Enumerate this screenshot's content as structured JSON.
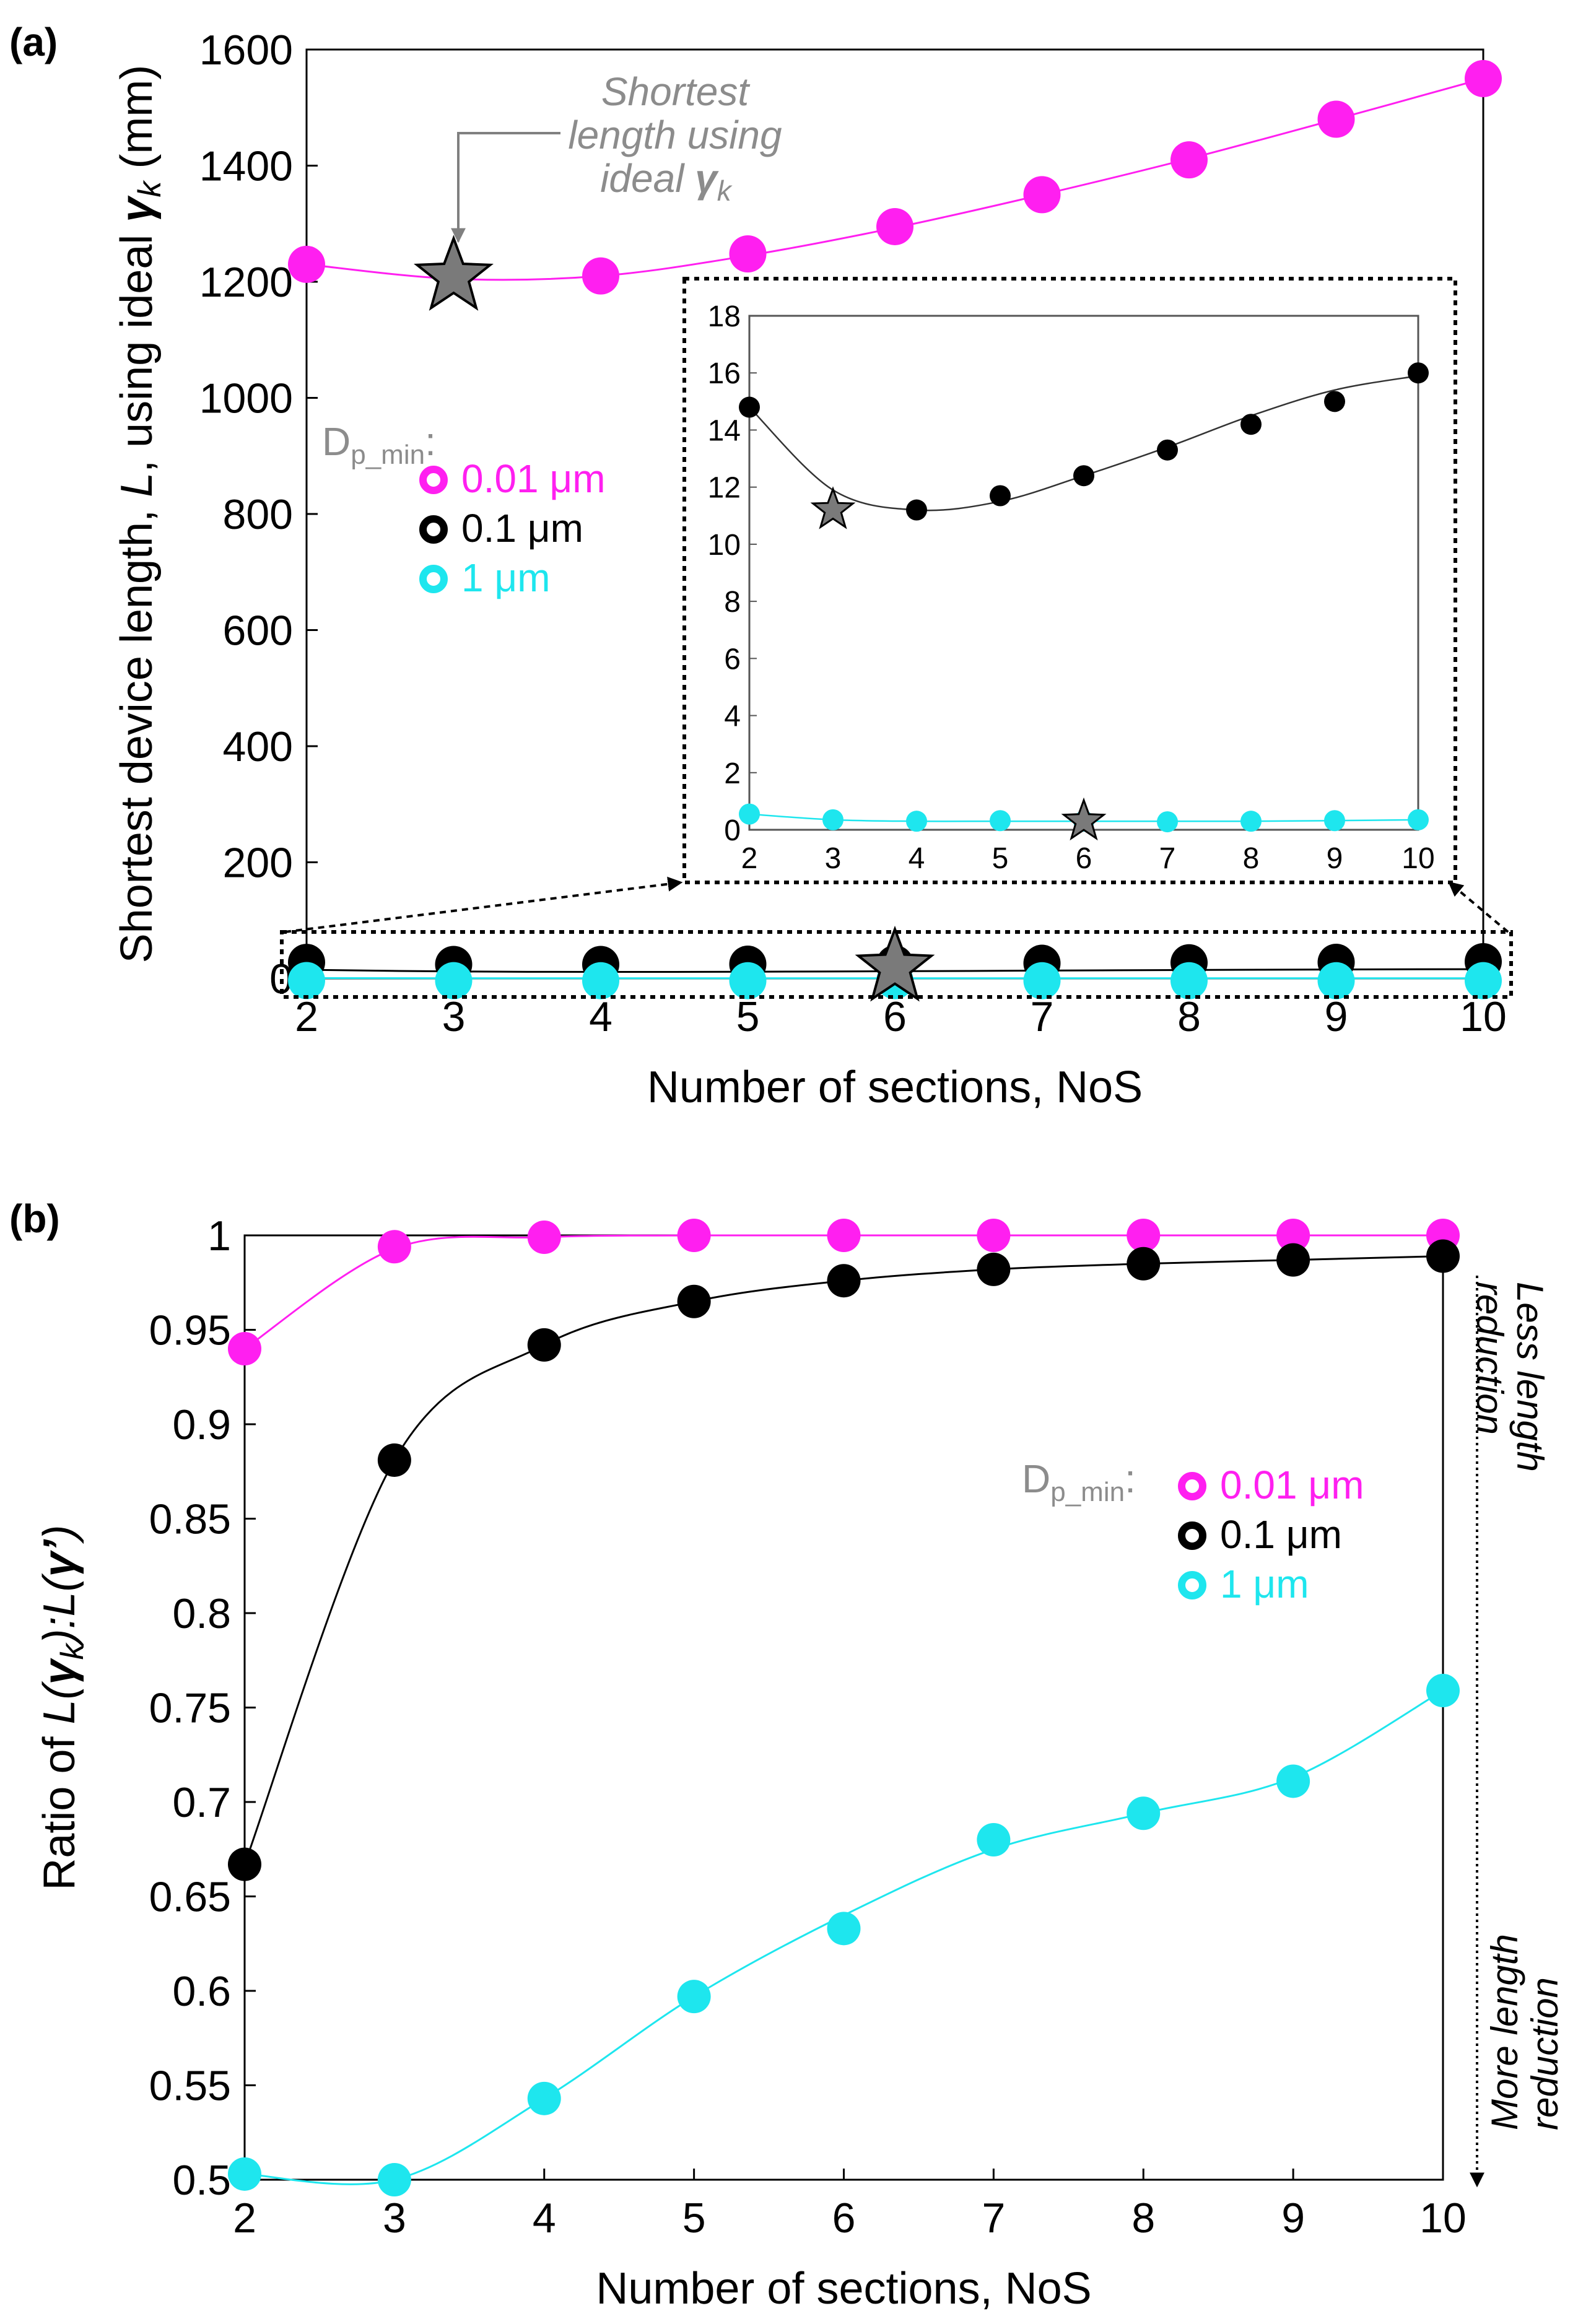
{
  "colors": {
    "magenta": "#ff1ff0",
    "black": "#000000",
    "cyan": "#1ee6ee",
    "gray": "#808080",
    "star_fill": "#7a7a7a",
    "gray_text": "#8c8c8c"
  },
  "legend": {
    "title_main": "D",
    "title_sub": "p_min",
    "title_colon": ":",
    "items": [
      "0.01 μm",
      "0.1 μm",
      "1 μm"
    ]
  },
  "chart_data": [
    {
      "panel": "(a)",
      "type": "line",
      "xlabel": "Number of sections, NoS",
      "ylabel_parts": [
        "Shortest device length, ",
        "L",
        ", using ideal ",
        "γ",
        "k",
        " (mm)"
      ],
      "x": [
        2,
        3,
        4,
        5,
        6,
        7,
        8,
        9,
        10
      ],
      "xlim": [
        2,
        10
      ],
      "ylim": [
        0,
        1600
      ],
      "yticks": [
        0,
        200,
        400,
        600,
        800,
        1000,
        1200,
        1400,
        1600
      ],
      "series": [
        {
          "name": "0.01 μm",
          "color": "magenta",
          "values": [
            1230,
            null,
            1210,
            1248,
            1295,
            1350,
            1410,
            1480,
            1550
          ],
          "fit": [
            1230,
            1205,
            1210,
            1245,
            1293,
            1350,
            1412,
            1480,
            1550
          ]
        },
        {
          "name": "0.1 μm",
          "color": "black",
          "values": [
            14.8,
            11.2,
            11.2,
            11.7,
            12.4,
            13.3,
            14.2,
            15.0,
            16.0
          ],
          "fit": [
            14.8,
            11.9,
            11.2,
            11.5,
            12.4,
            13.4,
            14.5,
            15.4,
            15.9
          ]
        },
        {
          "name": "1 μm",
          "color": "cyan",
          "values": [
            0.55,
            0.35,
            0.3,
            0.32,
            0.3,
            0.28,
            0.3,
            0.32,
            0.35
          ],
          "fit": [
            0.55,
            0.35,
            0.3,
            0.3,
            0.3,
            0.3,
            0.3,
            0.32,
            0.35
          ]
        }
      ],
      "stars": [
        {
          "x": 3,
          "y": 1200
        },
        {
          "x": 6,
          "y": 10
        }
      ],
      "annotation_lines": [
        "Shortest",
        "length using",
        "ideal "
      ],
      "annotation_gamma": "γ",
      "annotation_k": "k",
      "inset": {
        "x": [
          2,
          3,
          4,
          5,
          6,
          7,
          8,
          9,
          10
        ],
        "xlim": [
          2,
          10
        ],
        "ylim": [
          0,
          18
        ],
        "yticks": [
          0,
          2,
          4,
          6,
          8,
          10,
          12,
          14,
          16,
          18
        ],
        "stars": [
          {
            "x": 3,
            "y": 11.2
          },
          {
            "x": 6,
            "y": 0.3
          }
        ]
      }
    },
    {
      "panel": "(b)",
      "type": "line",
      "xlabel": "Number of sections, NoS",
      "ylabel_parts": [
        "Ratio of ",
        "L(",
        "γ",
        "k",
        "):",
        "L(",
        "γ",
        "’",
        ")"
      ],
      "x": [
        2,
        3,
        4,
        5,
        6,
        7,
        8,
        9,
        10
      ],
      "xlim": [
        2,
        10
      ],
      "ylim": [
        0.5,
        1.0
      ],
      "yticks": [
        0.5,
        0.55,
        0.6,
        0.65,
        0.7,
        0.75,
        0.8,
        0.85,
        0.9,
        0.95,
        1
      ],
      "ytick_labels": [
        "0.5",
        "0.55",
        "0.6",
        "0.65",
        "0.7",
        "0.75",
        "0.8",
        "0.85",
        "0.9",
        "0.95",
        "1"
      ],
      "series": [
        {
          "name": "0.01 μm",
          "color": "magenta",
          "values": [
            0.94,
            0.994,
            0.999,
            1.0,
            1.0,
            1.0,
            1.0,
            1.0,
            1.0
          ],
          "fit": [
            0.94,
            0.993,
            0.999,
            1.0,
            1.0,
            1.0,
            1.0,
            1.0,
            1.0
          ]
        },
        {
          "name": "0.1 μm",
          "color": "black",
          "values": [
            0.667,
            0.881,
            0.942,
            0.965,
            0.976,
            0.982,
            0.985,
            0.987,
            0.989
          ],
          "fit": [
            0.667,
            0.881,
            0.942,
            0.965,
            0.976,
            0.982,
            0.985,
            0.987,
            0.989
          ]
        },
        {
          "name": "1 μm",
          "color": "cyan",
          "values": [
            0.503,
            0.5,
            0.543,
            0.597,
            0.633,
            0.68,
            0.694,
            0.711,
            0.759
          ],
          "fit": [
            0.503,
            0.5,
            0.543,
            0.597,
            0.64,
            0.675,
            0.694,
            0.713,
            0.759
          ]
        }
      ],
      "side_top": [
        "Less length",
        "reduction"
      ],
      "side_bottom": [
        "More length",
        "reduction"
      ]
    }
  ]
}
